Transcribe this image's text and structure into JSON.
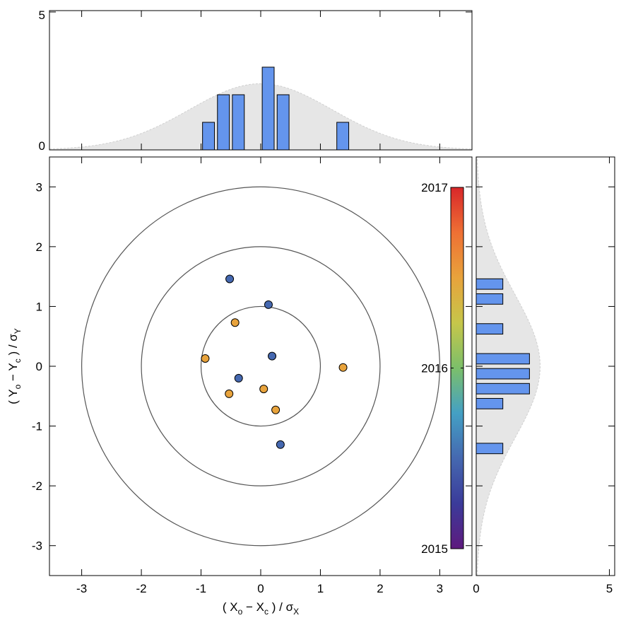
{
  "chart_data": [
    {
      "type": "scatter",
      "xlabel_parts": [
        "( X",
        "o",
        " − X",
        "c",
        " ) / σ",
        "X"
      ],
      "ylabel_parts": [
        "( Y",
        "o",
        " − Y",
        "c",
        " ) / σ",
        "Y"
      ],
      "x": [
        -0.52,
        0.13,
        0.19,
        -0.37,
        0.33,
        -0.43,
        -0.93,
        1.38,
        -0.53,
        0.05,
        0.25
      ],
      "y": [
        1.46,
        1.03,
        0.17,
        -0.2,
        -1.31,
        0.73,
        0.13,
        -0.02,
        -0.46,
        -0.38,
        -0.73
      ],
      "c": [
        2015.5,
        2015.5,
        2015.5,
        2015.5,
        2015.5,
        2016.5,
        2016.5,
        2016.5,
        2016.5,
        2016.5,
        2016.5
      ],
      "circles": [
        1,
        2,
        3
      ],
      "xlim": [
        -3.54,
        3.54
      ],
      "ylim": [
        -3.5,
        3.5
      ],
      "xticks": [
        -3,
        -2,
        -1,
        0,
        1,
        2,
        3
      ],
      "yticks": [
        -3,
        -2,
        -1,
        0,
        1,
        2,
        3
      ],
      "colorbar": {
        "clim": [
          2015,
          2017
        ],
        "ticks": [
          2015,
          2016,
          2017
        ],
        "colormap": [
          "#5e1a7e",
          "#3b3b9a",
          "#4568b0",
          "#44a0c4",
          "#7cbf6a",
          "#c6c64a",
          "#e8a33c",
          "#ee7034",
          "#d8272a"
        ]
      }
    },
    {
      "type": "histogram",
      "orientation": "vertical",
      "color": "#6495ed",
      "bins": [
        -1.0,
        -0.75,
        -0.5,
        -0.25,
        0,
        0.25,
        0.5,
        0.75,
        1.0,
        1.25,
        1.5
      ],
      "counts": [
        1,
        2,
        2,
        0,
        3,
        2,
        0,
        0,
        0,
        1
      ],
      "xlim": [
        -3.54,
        3.54
      ],
      "ylim": [
        0,
        5.05
      ],
      "xticks": [
        -3,
        -2,
        -1,
        0,
        1,
        2,
        3
      ],
      "yticks": [
        0,
        5
      ],
      "reference_curve": {
        "amplitude": 2.4,
        "sigma": 1.2
      }
    },
    {
      "type": "histogram",
      "orientation": "horizontal",
      "color": "#6495ed",
      "bins": [
        -1.5,
        -1.25,
        -1.0,
        -0.75,
        -0.5,
        -0.25,
        0,
        0.25,
        0.5,
        0.75,
        1.0,
        1.25,
        1.5
      ],
      "counts": [
        1,
        0,
        0,
        1,
        2,
        2,
        2,
        0,
        1,
        0,
        1,
        1
      ],
      "xlim": [
        0,
        5.2
      ],
      "ylim": [
        -3.5,
        3.5
      ],
      "xticks": [
        0,
        5
      ],
      "yticks": [
        -3,
        -2,
        -1,
        0,
        1,
        2,
        3
      ],
      "reference_curve": {
        "amplitude": 2.4,
        "sigma": 1.2
      }
    }
  ]
}
